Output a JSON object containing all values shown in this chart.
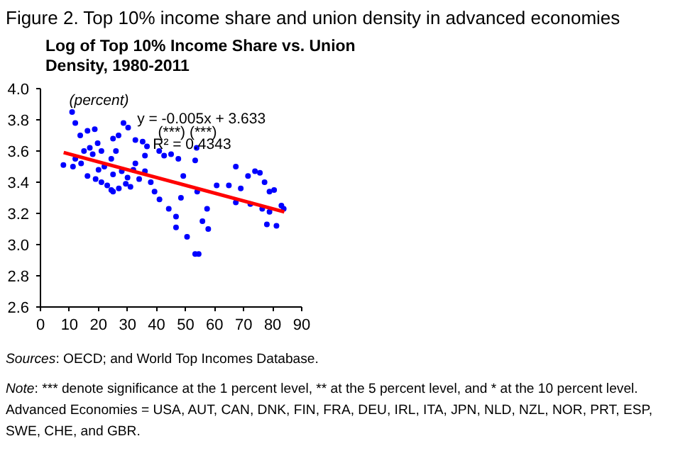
{
  "chart_data": {
    "type": "scatter",
    "title": "Figure 2. Top 10% income share and union density in advanced economies",
    "subtitle": "Log of Top 10% Income Share vs. Union Density, 1980-2011",
    "ylabel": "(percent)",
    "annotations": [
      "y = -0.005x + 3.633",
      "(***)          (***)",
      "R² = 0.4343",
      "Sources: OECD; and World Top Incomes Database.",
      "Note: *** denote significance at the 1 percent level, ** at the 5 percent level, and * at the 10 percent level. Advanced Economies = USA, AUT, CAN, DNK, FIN, FRA, DEU, IRL, ITA, JPN, NLD, NZL, NOR, PRT, ESP, SWE, CHE, and GBR."
    ],
    "xlim": [
      0,
      90
    ],
    "xticks": [
      0,
      10,
      20,
      30,
      40,
      50,
      60,
      70,
      80,
      90
    ],
    "ylim": [
      2.6,
      4.0
    ],
    "yticks": [
      {
        "value": 2.6,
        "label": "2.6"
      },
      {
        "value": 2.8,
        "label": "2.8"
      },
      {
        "value": 3.0,
        "label": "3.0"
      },
      {
        "value": 3.2,
        "label": "3.2"
      },
      {
        "value": 3.4,
        "label": "3.4"
      },
      {
        "value": 3.6,
        "label": "3.6"
      },
      {
        "value": 3.8,
        "label": "3.8"
      },
      {
        "value": 4.0,
        "label": "4.0"
      }
    ],
    "grid": false,
    "marker": "circle",
    "series": [
      {
        "color": "#0000ff",
        "x": [
          10.9,
          12.0,
          13.7,
          16.2,
          18.7,
          19.7,
          25,
          26.9,
          28.6,
          30.2,
          32.7,
          35.2,
          36.7,
          40.9,
          45,
          53.8,
          7.9,
          11.2,
          16.2,
          21,
          24.4,
          29.4,
          36,
          39.3,
          41,
          44.2,
          46.7,
          46.7,
          50.5,
          48.4,
          49.2,
          53.3,
          54,
          55.8,
          57.4,
          57.8,
          53.3,
          54.5,
          60.7,
          64.9,
          67.3,
          69,
          67.3,
          73.9,
          71.5,
          77.2,
          78.9,
          80.5,
          72.3,
          76.4,
          78.9,
          78,
          81.3,
          83,
          83.8,
          75.6,
          36,
          42.6,
          47.5,
          32.7,
          24.4,
          12,
          14,
          18,
          20,
          22,
          25,
          28,
          30,
          32,
          34,
          38,
          26,
          21,
          17,
          15,
          19,
          23,
          25,
          27,
          31
        ],
        "values": [
          3.85,
          3.78,
          3.7,
          3.73,
          3.74,
          3.65,
          3.68,
          3.7,
          3.78,
          3.75,
          3.67,
          3.66,
          3.63,
          3.6,
          3.58,
          3.62,
          3.51,
          3.5,
          3.44,
          3.4,
          3.35,
          3.39,
          3.47,
          3.34,
          3.29,
          3.23,
          3.18,
          3.11,
          3.05,
          3.3,
          3.44,
          3.54,
          3.34,
          3.15,
          3.23,
          3.1,
          2.94,
          2.94,
          3.38,
          3.38,
          3.5,
          3.36,
          3.27,
          3.47,
          3.44,
          3.4,
          3.34,
          3.35,
          3.26,
          3.23,
          3.21,
          3.13,
          3.12,
          3.25,
          3.23,
          3.46,
          3.57,
          3.57,
          3.55,
          3.52,
          3.55,
          3.55,
          3.52,
          3.58,
          3.48,
          3.5,
          3.45,
          3.47,
          3.43,
          3.48,
          3.42,
          3.4,
          3.6,
          3.6,
          3.62,
          3.6,
          3.42,
          3.38,
          3.34,
          3.36,
          3.37
        ]
      },
      {
        "type": "line",
        "color": "#ff0000",
        "marker": "none",
        "x": [
          8,
          84
        ],
        "values": [
          3.59,
          3.21
        ]
      }
    ]
  }
}
